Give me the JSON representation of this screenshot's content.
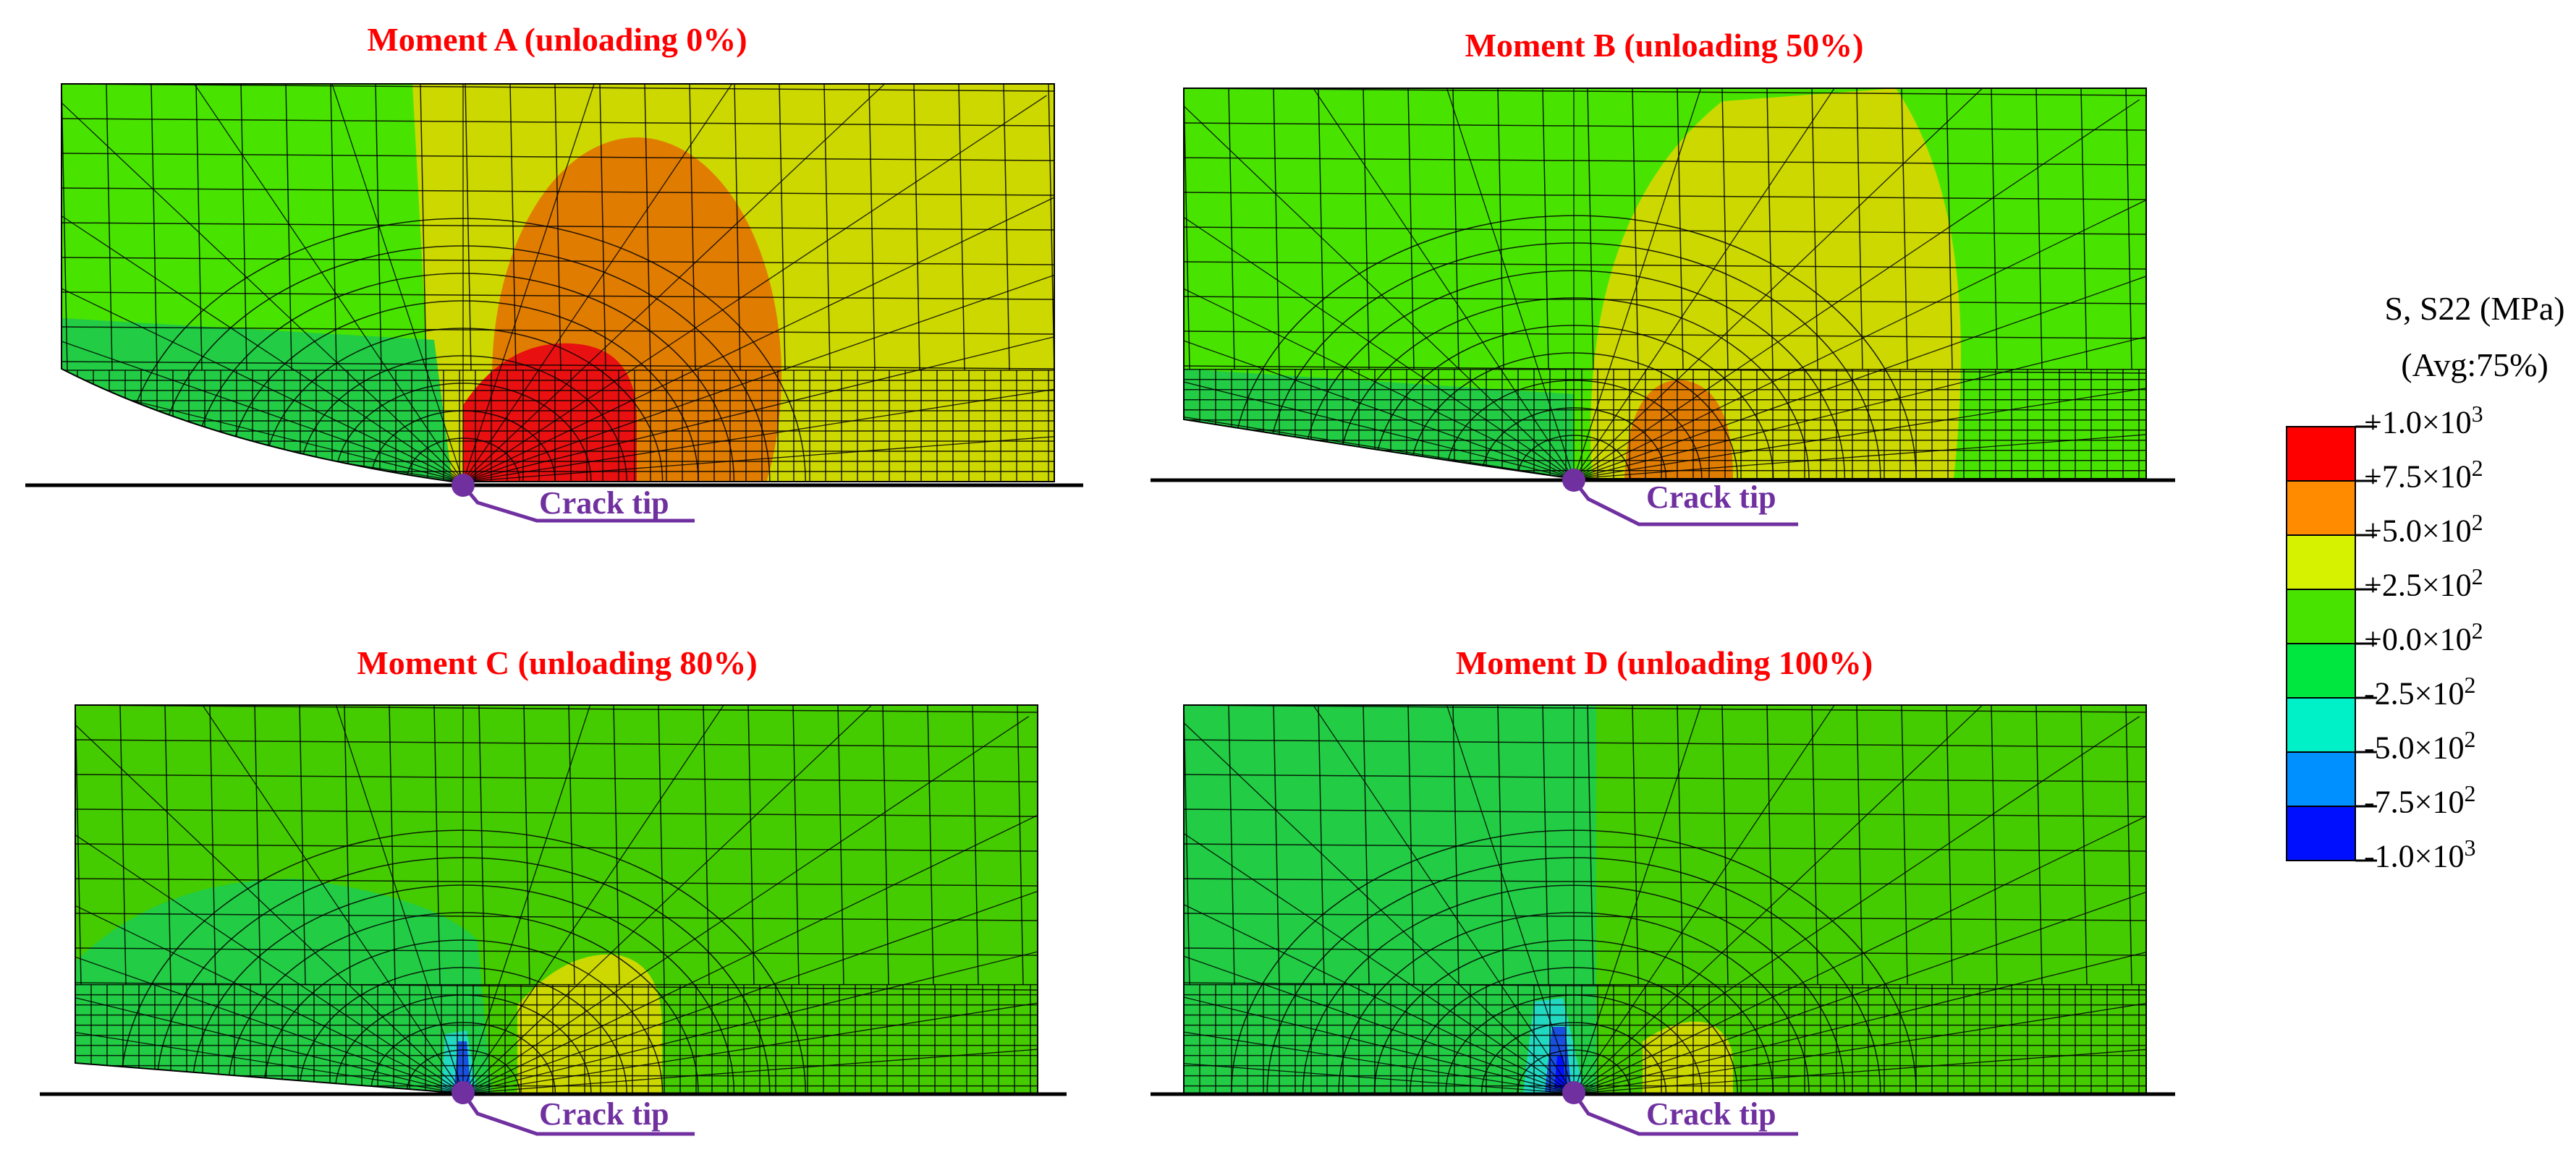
{
  "panels": [
    {
      "id": "A",
      "title": "Moment A (unloading 0%)",
      "crack_label": "Crack tip"
    },
    {
      "id": "B",
      "title": "Moment B (unloading 50%)",
      "crack_label": "Crack tip"
    },
    {
      "id": "C",
      "title": "Moment C (unloading 80%)",
      "crack_label": "Crack tip"
    },
    {
      "id": "D",
      "title": "Moment D (unloading 100%)",
      "crack_label": "Crack tip"
    }
  ],
  "legend": {
    "title_line1": "S, S22 (MPa)",
    "title_line2": "(Avg:75%)",
    "ticks": [
      {
        "sign": "+",
        "mantissa": "1.0",
        "exp": "3"
      },
      {
        "sign": "+",
        "mantissa": "7.5",
        "exp": "2"
      },
      {
        "sign": "+",
        "mantissa": "5.0",
        "exp": "2"
      },
      {
        "sign": "+",
        "mantissa": "2.5",
        "exp": "2"
      },
      {
        "sign": "+",
        "mantissa": "0.0",
        "exp": "2"
      },
      {
        "sign": "-",
        "mantissa": "2.5",
        "exp": "2"
      },
      {
        "sign": "-",
        "mantissa": "5.0",
        "exp": "2"
      },
      {
        "sign": "-",
        "mantissa": "7.5",
        "exp": "2"
      },
      {
        "sign": "-",
        "mantissa": "1.0",
        "exp": "3"
      }
    ],
    "band_colors": [
      "#ff0000",
      "#ff8c00",
      "#d6f200",
      "#48e400",
      "#00e840",
      "#00f0c8",
      "#0090ff",
      "#0010ff"
    ]
  },
  "colors": {
    "title": "#ff0000",
    "crack_marker": "#7030a0",
    "mesh_line": "#000000",
    "contour_orange": "#e07c00",
    "contour_red": "#e81010",
    "contour_yellow": "#ccd800",
    "contour_green": "#44cc00",
    "contour_teal_green": "#22cc44",
    "contour_cyan": "#22d8c0",
    "contour_blue": "#1a50e0"
  }
}
